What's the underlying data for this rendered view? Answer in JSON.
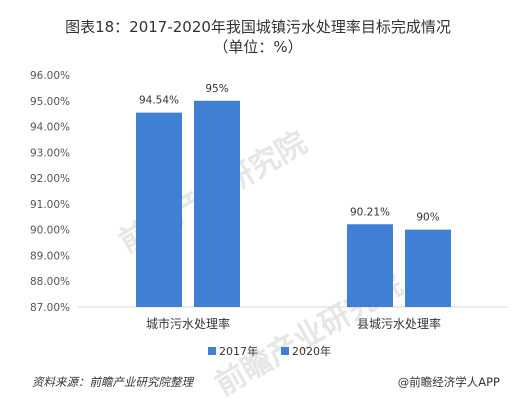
{
  "chart_data": {
    "type": "bar",
    "title": "图表18：2017-2020年我国城镇污水处理率目标完成情况",
    "subtitle": "（单位：%）",
    "categories": [
      "城市污水处理率",
      "县城污水处理率"
    ],
    "series": [
      {
        "name": "2017年",
        "values": [
          94.54,
          90.21
        ],
        "labels": [
          "94.54%",
          "90.21%"
        ],
        "color": "#3f7fd4"
      },
      {
        "name": "2020年",
        "values": [
          95,
          90
        ],
        "labels": [
          "95%",
          "90%"
        ],
        "color": "#3f7fd4"
      }
    ],
    "y_ticks": [
      "87.00%",
      "88.00%",
      "89.00%",
      "90.00%",
      "91.00%",
      "92.00%",
      "93.00%",
      "94.00%",
      "95.00%",
      "96.00%"
    ],
    "ylim": [
      87,
      96
    ],
    "legend_position": "bottom",
    "grid": false
  },
  "footer": {
    "source": "资料来源：前瞻产业研究院整理",
    "credit": "@前瞻经济学人APP"
  },
  "watermark": {
    "text": "前瞻产业研究院"
  }
}
